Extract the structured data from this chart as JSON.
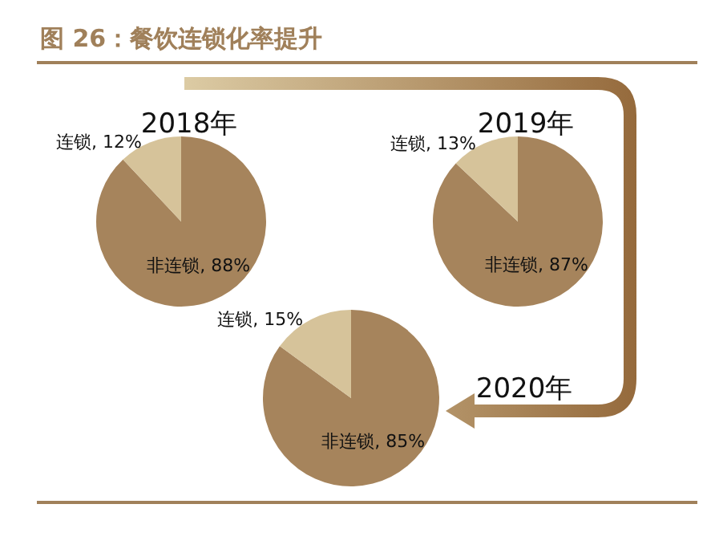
{
  "chart_data": [
    {
      "type": "pie",
      "title": "2018年",
      "annotations": [
        "图 26：餐饮连锁化率提升"
      ],
      "categories": [
        "非连锁",
        "连锁"
      ],
      "values": [
        88,
        12
      ],
      "colors": [
        "#a6845c",
        "#d6c39a"
      ],
      "value_labels": [
        "88%",
        "12%"
      ]
    },
    {
      "type": "pie",
      "title": "2019年",
      "categories": [
        "非连锁",
        "连锁"
      ],
      "values": [
        87,
        13
      ],
      "colors": [
        "#a6845c",
        "#d6c39a"
      ],
      "value_labels": [
        "87%",
        "13%"
      ]
    },
    {
      "type": "pie",
      "title": "2020年",
      "categories": [
        "非连锁",
        "连锁"
      ],
      "values": [
        85,
        15
      ],
      "colors": [
        "#a6845c",
        "#d6c39a"
      ],
      "value_labels": [
        "85%",
        "15%"
      ]
    }
  ]
}
